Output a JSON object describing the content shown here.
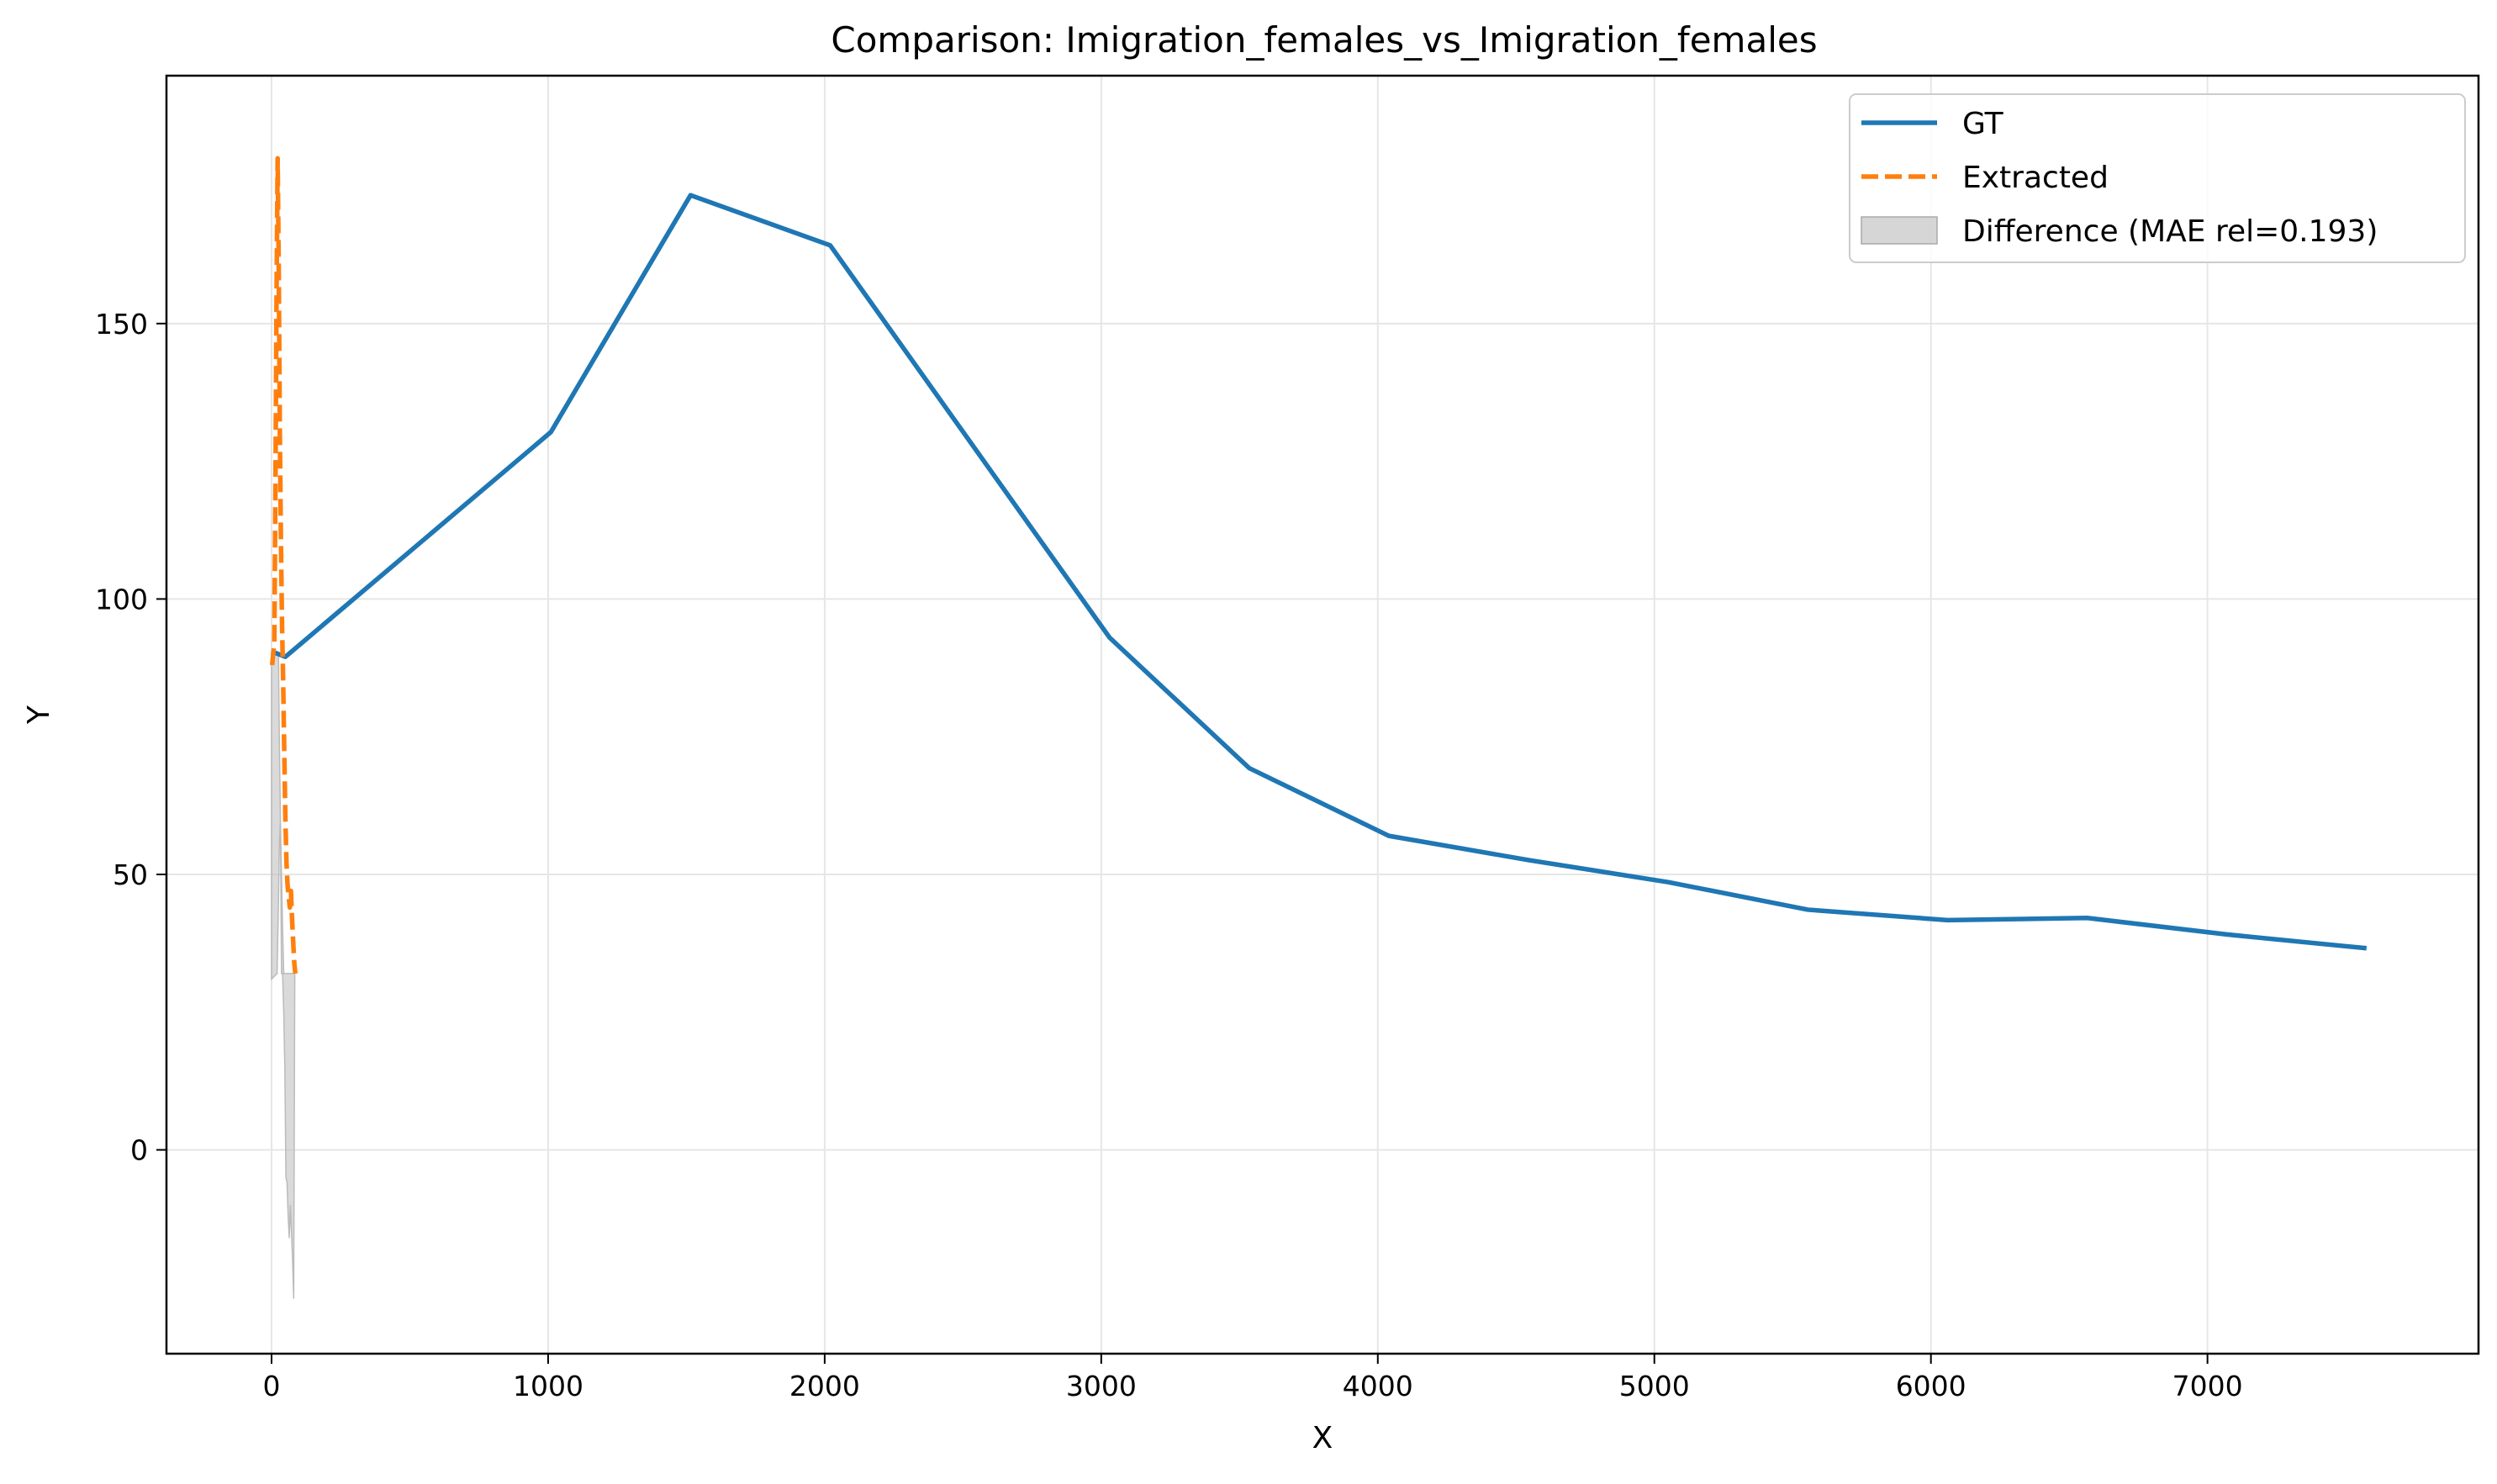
{
  "chart_data": {
    "type": "line",
    "title": "Comparison: Imigration_females_vs_Imigration_females",
    "xlabel": "X",
    "ylabel": "Y",
    "xlim": [
      -380,
      7980
    ],
    "ylim": [
      -37,
      195
    ],
    "xticks": [
      0,
      1000,
      2000,
      3000,
      4000,
      5000,
      6000,
      7000
    ],
    "yticks": [
      0,
      50,
      100,
      150
    ],
    "grid": true,
    "legend_position": "top-right",
    "series": [
      {
        "name": "GT",
        "style": "solid",
        "color": "#1f77b4",
        "points": [
          [
            0,
            90.5
          ],
          [
            50,
            89.5
          ],
          [
            1010,
            130.3
          ],
          [
            1515,
            173.3
          ],
          [
            2020,
            164.2
          ],
          [
            3030,
            93.0
          ],
          [
            3535,
            69.3
          ],
          [
            4040,
            57.0
          ],
          [
            4545,
            52.6
          ],
          [
            5050,
            48.6
          ],
          [
            5555,
            43.6
          ],
          [
            6060,
            41.7
          ],
          [
            6565,
            42.1
          ],
          [
            7070,
            39.1
          ],
          [
            7575,
            36.6
          ]
        ]
      },
      {
        "name": "Extracted",
        "style": "dashed",
        "color": "#ff7f0e",
        "points": [
          [
            2,
            88
          ],
          [
            10,
            92
          ],
          [
            14,
            120
          ],
          [
            18,
            155
          ],
          [
            22,
            180
          ],
          [
            26,
            160
          ],
          [
            30,
            130
          ],
          [
            34,
            110
          ],
          [
            38,
            95
          ],
          [
            42,
            85
          ],
          [
            46,
            72
          ],
          [
            50,
            60
          ],
          [
            54,
            52
          ],
          [
            58,
            48
          ],
          [
            62,
            46
          ],
          [
            66,
            44
          ],
          [
            70,
            47
          ],
          [
            74,
            42
          ],
          [
            78,
            38
          ],
          [
            82,
            34
          ],
          [
            86,
            32
          ]
        ]
      }
    ],
    "difference_band": {
      "name": "Difference (MAE rel=0.193)",
      "color": "#bbbbbb",
      "points": [
        [
          0,
          31,
          90
        ],
        [
          20,
          32,
          90
        ],
        [
          25,
          45,
          90
        ],
        [
          28,
          55,
          75
        ],
        [
          32,
          60,
          60
        ],
        [
          36,
          32,
          50
        ],
        [
          40,
          32,
          40
        ],
        [
          44,
          32,
          25
        ],
        [
          48,
          32,
          15
        ],
        [
          52,
          -5,
          32
        ],
        [
          56,
          -6,
          32
        ],
        [
          60,
          -12,
          32
        ],
        [
          64,
          -16,
          32
        ],
        [
          68,
          -10,
          32
        ],
        [
          72,
          -15,
          32
        ],
        [
          76,
          -20,
          32
        ],
        [
          80,
          -27,
          32
        ],
        [
          84,
          32,
          32
        ]
      ]
    }
  }
}
